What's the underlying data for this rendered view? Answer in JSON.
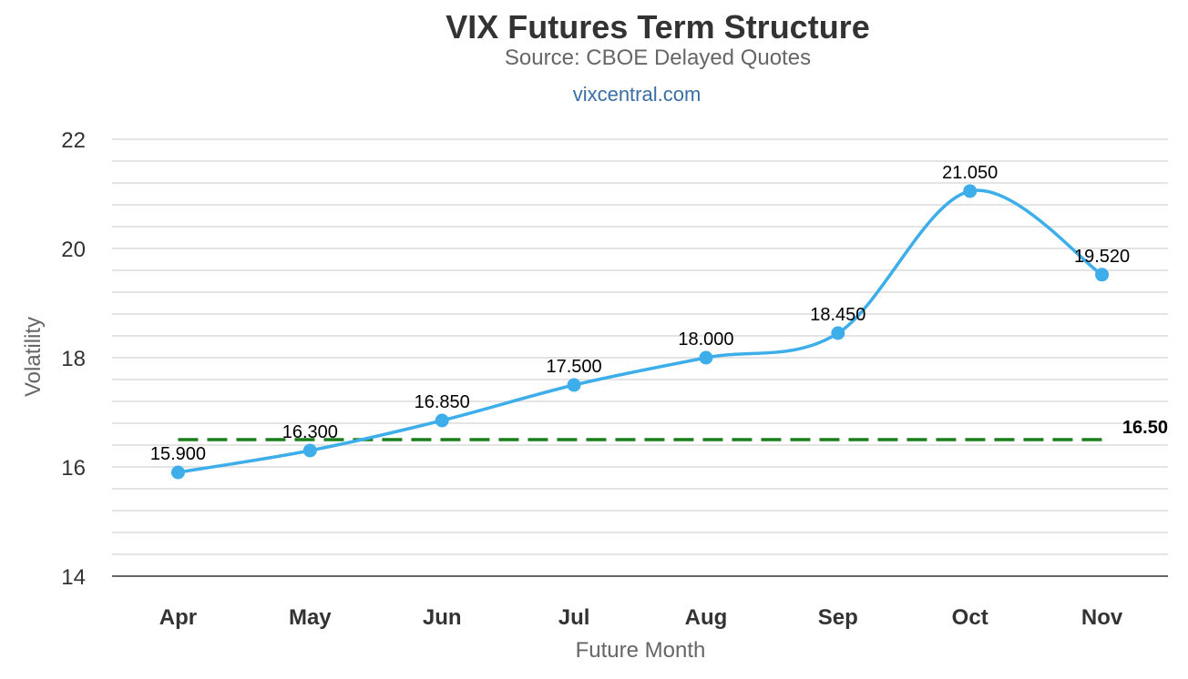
{
  "chart_data": {
    "type": "line",
    "title": "VIX Futures Term Structure",
    "subtitle": "Source: CBOE Delayed Quotes",
    "credit": "vixcentral.com",
    "xlabel": "Future Month",
    "ylabel": "Volatility",
    "categories": [
      "Apr",
      "May",
      "Jun",
      "Jul",
      "Aug",
      "Sep",
      "Oct",
      "Nov"
    ],
    "ylim": [
      14,
      22
    ],
    "yticks": [
      "14",
      "16",
      "18",
      "20",
      "22"
    ],
    "grid": true,
    "minor_grid_step": 0.4,
    "series": [
      {
        "values": [
          15.9,
          16.3,
          16.85,
          17.5,
          18.0,
          18.45,
          21.05,
          19.52
        ],
        "labels": [
          "15.900",
          "16.300",
          "16.850",
          "17.500",
          "18.000",
          "18.450",
          "21.050",
          "19.520"
        ],
        "color": "#3daee9",
        "smooth": true
      }
    ],
    "reference_line": {
      "value": 16.5,
      "label": "16.50",
      "color": "#1a7f1a",
      "style": "dashed"
    }
  }
}
